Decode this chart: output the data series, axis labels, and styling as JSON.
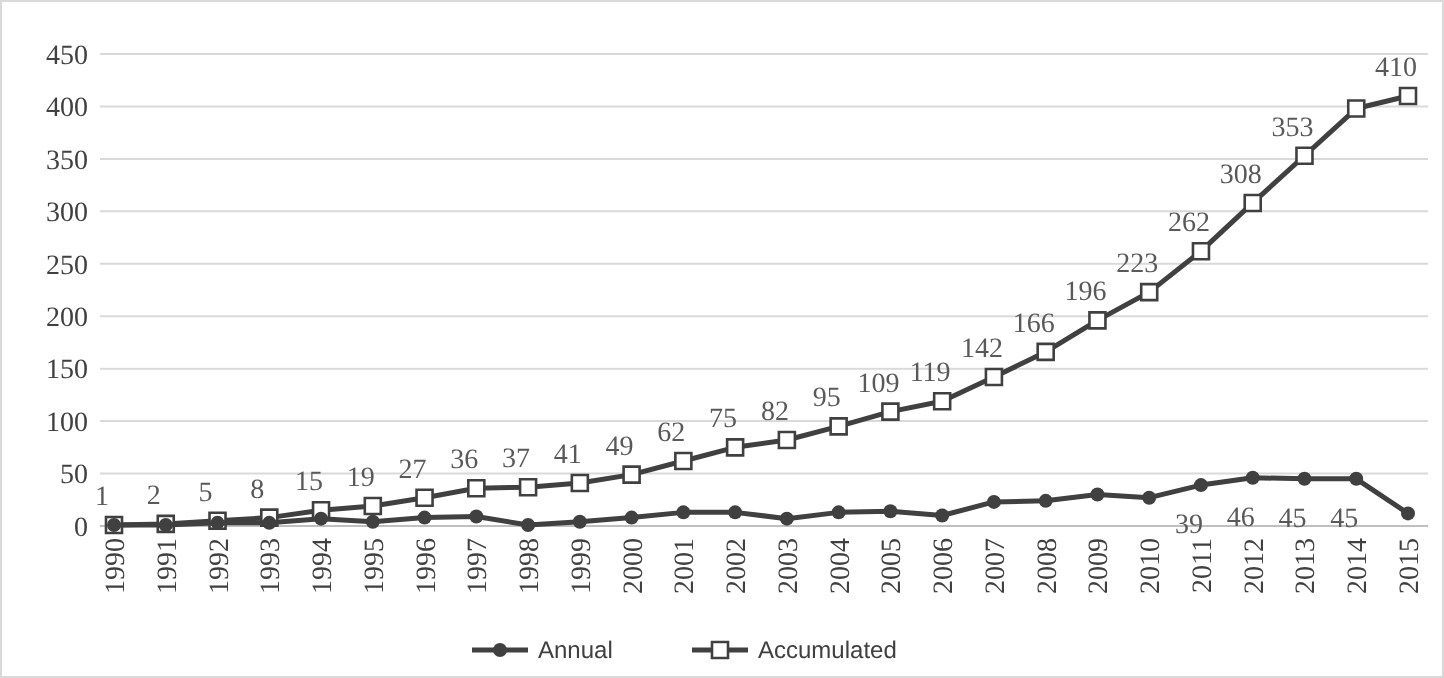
{
  "chart_data": {
    "type": "line",
    "categories": [
      "1990",
      "1991",
      "1992",
      "1993",
      "1994",
      "1995",
      "1996",
      "1997",
      "1998",
      "1999",
      "2000",
      "2001",
      "2002",
      "2003",
      "2004",
      "2005",
      "2006",
      "2007",
      "2008",
      "2009",
      "2010",
      "2011",
      "2012",
      "2013",
      "2014",
      "2015"
    ],
    "series": [
      {
        "name": "Annual",
        "color": "#404040",
        "marker": "circle",
        "values": [
          1,
          1,
          3,
          3,
          7,
          4,
          8,
          9,
          1,
          4,
          8,
          13,
          13,
          7,
          13,
          14,
          10,
          23,
          24,
          30,
          27,
          39,
          46,
          45,
          45,
          12
        ],
        "value_labels": [
          null,
          null,
          null,
          null,
          null,
          null,
          null,
          null,
          null,
          null,
          null,
          null,
          null,
          null,
          null,
          null,
          null,
          null,
          null,
          null,
          null,
          "39",
          "46",
          "45",
          "45",
          null
        ]
      },
      {
        "name": "Accumulated",
        "color": "#404040",
        "marker": "square",
        "values": [
          1,
          2,
          5,
          8,
          15,
          19,
          27,
          36,
          37,
          41,
          49,
          62,
          75,
          82,
          95,
          109,
          119,
          142,
          166,
          196,
          223,
          262,
          308,
          353,
          398,
          410
        ],
        "value_labels": [
          "1",
          "2",
          "5",
          "8",
          "15",
          "19",
          "27",
          "36",
          "37",
          "41",
          "49",
          "62",
          "75",
          "82",
          "95",
          "109",
          "119",
          "142",
          "166",
          "196",
          "223",
          "262",
          "308",
          "353",
          null,
          "410"
        ]
      }
    ],
    "ylim": [
      0,
      450
    ],
    "yticks": [
      0,
      50,
      100,
      150,
      200,
      250,
      300,
      350,
      400,
      450
    ],
    "grid": "y",
    "legend": "bottom"
  }
}
